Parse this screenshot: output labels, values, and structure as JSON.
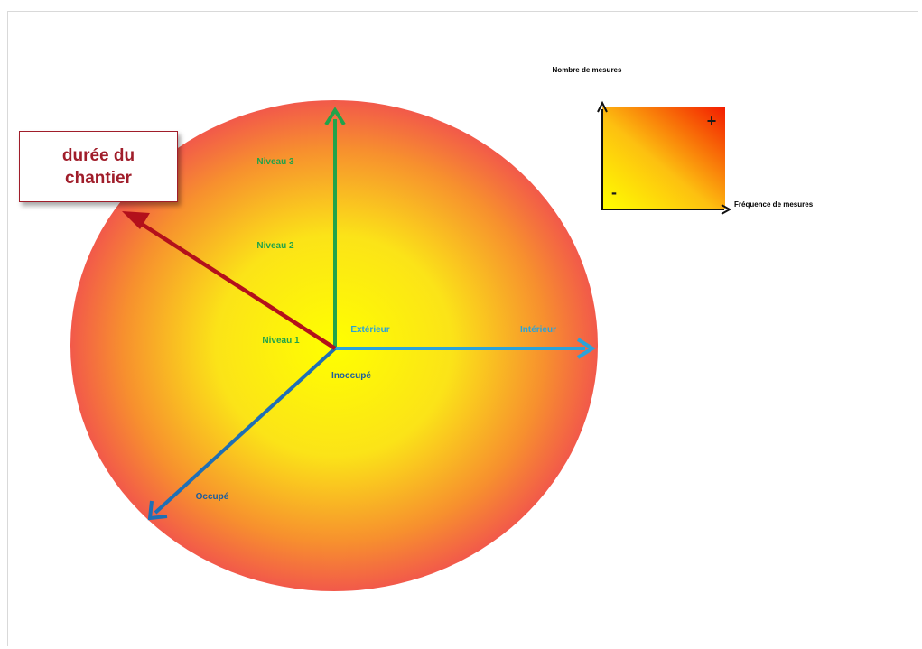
{
  "diagram": {
    "callout": {
      "line1": "durée du",
      "line2": "chantier"
    },
    "axes": {
      "vertical": {
        "labels": [
          "Niveau 1",
          "Niveau 2",
          "Niveau 3"
        ],
        "color": "#21a34a"
      },
      "horizontal": {
        "start_label": "Extérieur",
        "end_label": "Intérieur",
        "color": "#2ba3d9"
      },
      "diagonal": {
        "start_label": "Inoccupé",
        "end_label": "Occupé",
        "color": "#1f6fb5"
      },
      "duration": {
        "color": "#b3101b"
      }
    },
    "legend": {
      "y_label": "Nombre de mesures",
      "x_label": "Fréquence de mesures",
      "plus": "+",
      "minus": "-"
    },
    "colors": {
      "circle_center": "#ffff00",
      "circle_edge": "#f4604a",
      "inner_text": "#1a5c9e"
    }
  }
}
